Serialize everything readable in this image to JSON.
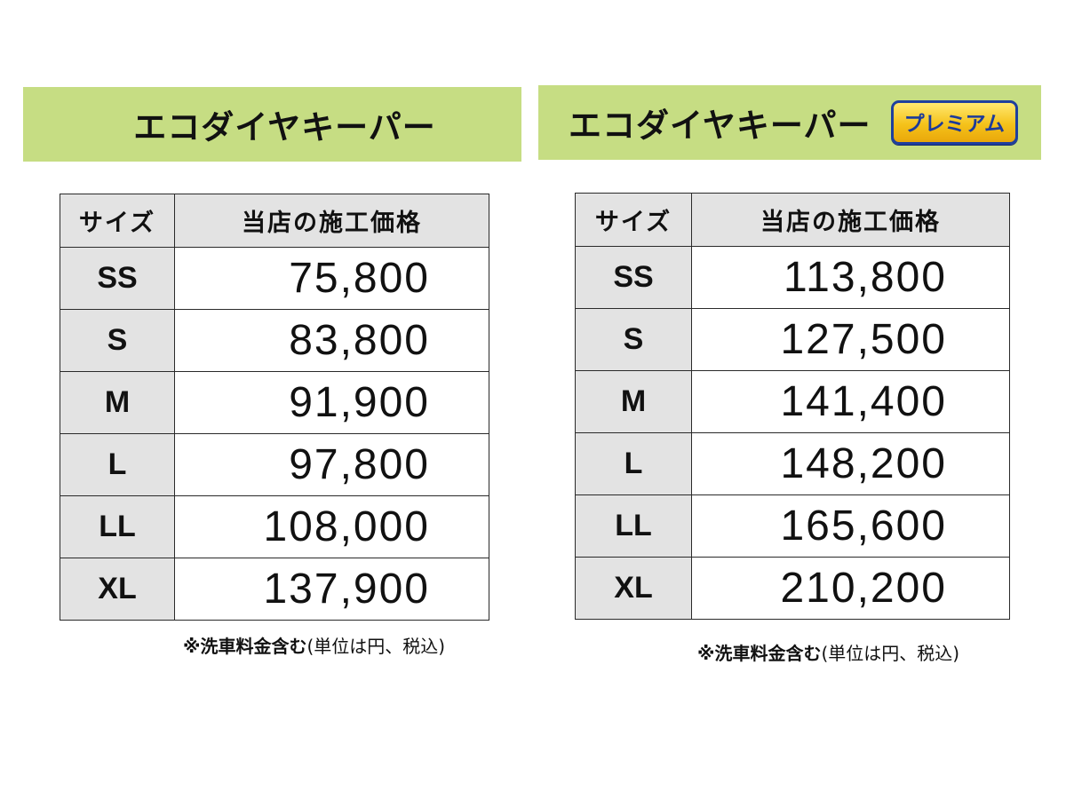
{
  "left_panel": {
    "title": "エコダイヤキーパー",
    "header": {
      "size": "サイズ",
      "price": "当店の施工価格"
    },
    "rows": [
      {
        "size": "SS",
        "price": "75,800"
      },
      {
        "size": "S",
        "price": "83,800"
      },
      {
        "size": "M",
        "price": "91,900"
      },
      {
        "size": "L",
        "price": "97,800"
      },
      {
        "size": "LL",
        "price": "108,000"
      },
      {
        "size": "XL",
        "price": "137,900"
      }
    ],
    "note_main": "※洗車料金含む",
    "note_detail": "(単位は円、税込)"
  },
  "right_panel": {
    "title": "エコダイヤキーパー",
    "badge": "プレミアム",
    "header": {
      "size": "サイズ",
      "price": "当店の施工価格"
    },
    "rows": [
      {
        "size": "SS",
        "price": "113,800"
      },
      {
        "size": "S",
        "price": "127,500"
      },
      {
        "size": "M",
        "price": "141,400"
      },
      {
        "size": "L",
        "price": "148,200"
      },
      {
        "size": "LL",
        "price": "165,600"
      },
      {
        "size": "XL",
        "price": "210,200"
      }
    ],
    "note_main": "※洗車料金含む",
    "note_detail": "(単位は円、税込)"
  },
  "colors": {
    "banner": "#c6dd83",
    "header_cell": "#e3e3e3",
    "badge_fill": "#f5c21a",
    "badge_text": "#1c3a9a"
  }
}
